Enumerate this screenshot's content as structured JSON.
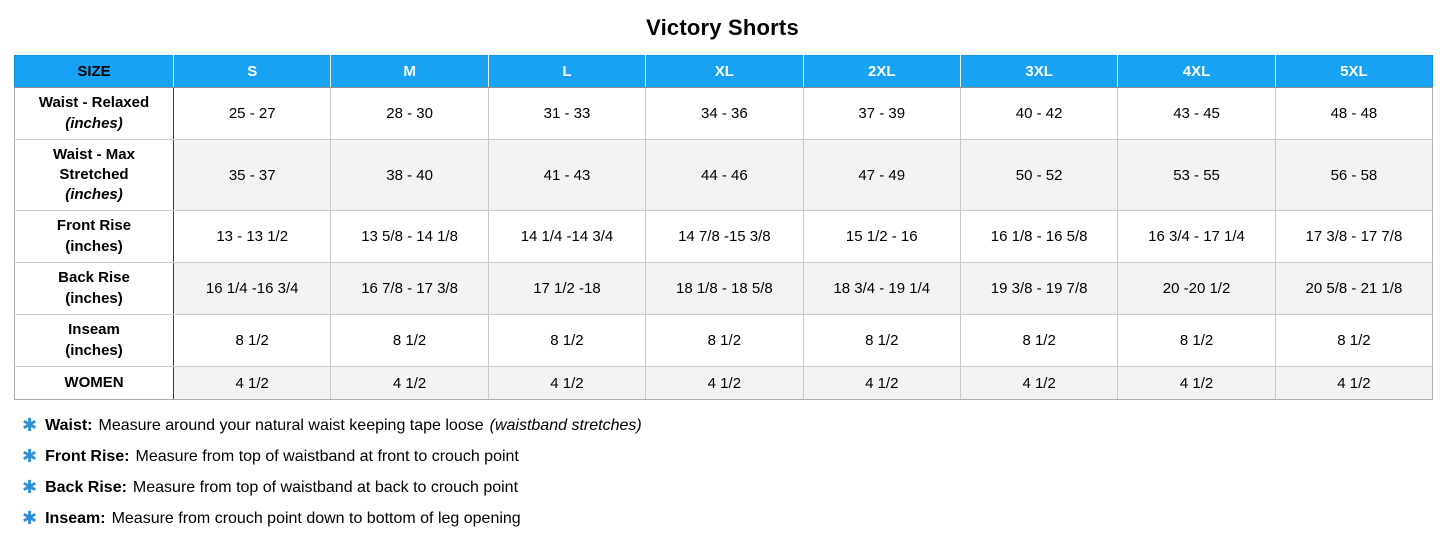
{
  "title": "Victory Shorts",
  "colors": {
    "header_blue": "#17a2f3",
    "zebra_gray": "#f3f3f3",
    "asterisk_blue": "#2e90d8",
    "label_divider": "#3a3a3a"
  },
  "icons": {
    "note_bullet": "asterisk-icon",
    "note_bullet_glyph": "✱"
  },
  "table": {
    "header": [
      "SIZE",
      "S",
      "M",
      "L",
      "XL",
      "2XL",
      "3XL",
      "4XL",
      "5XL"
    ],
    "rows": [
      {
        "label": "Waist - Relaxed",
        "unit": "(inches)",
        "unit_italic": true,
        "values": [
          "25 - 27",
          "28 - 30",
          "31 - 33",
          "34 - 36",
          "37 - 39",
          "40 - 42",
          "43 - 45",
          "48 - 48"
        ]
      },
      {
        "label": "Waist - Max Stretched",
        "unit": "(inches)",
        "unit_italic": true,
        "values": [
          "35 - 37",
          "38 - 40",
          "41 - 43",
          "44 - 46",
          "47 - 49",
          "50 - 52",
          "53 - 55",
          "56 - 58"
        ]
      },
      {
        "label": "Front Rise",
        "unit": "(inches)",
        "unit_italic": false,
        "values": [
          "13 - 13 1/2",
          "13 5/8 - 14 1/8",
          "14 1/4 -14 3/4",
          "14 7/8 -15 3/8",
          "15 1/2 - 16",
          "16 1/8 - 16 5/8",
          "16 3/4 - 17 1/4",
          "17 3/8 - 17 7/8"
        ]
      },
      {
        "label": "Back Rise",
        "unit": "(inches)",
        "unit_italic": false,
        "values": [
          "16 1/4 -16 3/4",
          "16 7/8 - 17 3/8",
          "17 1/2 -18",
          "18 1/8 - 18 5/8",
          "18 3/4 - 19 1/4",
          "19 3/8 - 19 7/8",
          "20 -20 1/2",
          "20 5/8 - 21 1/8"
        ]
      },
      {
        "label": "Inseam",
        "unit": "(inches)",
        "unit_italic": false,
        "values": [
          "8 1/2",
          "8 1/2",
          "8 1/2",
          "8 1/2",
          "8 1/2",
          "8 1/2",
          "8 1/2",
          "8 1/2"
        ]
      },
      {
        "label": "WOMEN",
        "unit": "",
        "unit_italic": false,
        "values": [
          "4 1/2",
          "4 1/2",
          "4 1/2",
          "4 1/2",
          "4 1/2",
          "4 1/2",
          "4 1/2",
          "4 1/2"
        ]
      }
    ]
  },
  "notes": [
    {
      "label": "Waist:",
      "text": "Measure around your natural waist keeping tape loose",
      "suffix_italic": "(waistband stretches)"
    },
    {
      "label": "Front Rise:",
      "text": "Measure from top of waistband at front to crouch point",
      "suffix_italic": ""
    },
    {
      "label": "Back Rise:",
      "text": "Measure from top of waistband at back to crouch point",
      "suffix_italic": ""
    },
    {
      "label": "Inseam:",
      "text": "Measure from crouch point down to bottom of leg opening",
      "suffix_italic": ""
    }
  ]
}
